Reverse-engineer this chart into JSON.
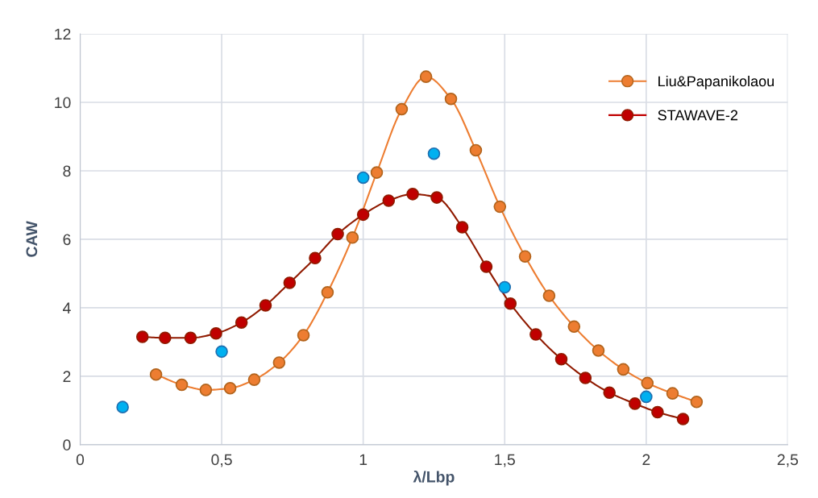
{
  "chart_data": {
    "type": "line",
    "xlabel": "λ/Lbp",
    "ylabel": "CAW",
    "xlim": [
      0,
      2.5
    ],
    "ylim": [
      0,
      12
    ],
    "xticks": [
      0,
      {
        "value": 0.5,
        "label": "0,5"
      },
      1,
      {
        "value": 1.5,
        "label": "1,5"
      },
      2,
      {
        "value": 2.5,
        "label": "2,5"
      }
    ],
    "yticks": [
      0,
      2,
      4,
      6,
      8,
      10,
      12
    ],
    "grid": true,
    "legend": "top right",
    "marker": "circle",
    "line_style": "solid",
    "series": [
      {
        "type": "scatter",
        "color": "#00b0f0",
        "x": [
          0.15,
          0.5,
          1.0,
          1.25,
          1.5,
          2.0
        ],
        "values": [
          1.1,
          2.72,
          7.8,
          8.5,
          4.6,
          1.4
        ]
      },
      {
        "name": "Liu&Papanikolaou",
        "color": "#ed7d31",
        "x": [
          0.268,
          0.359,
          0.444,
          0.53,
          0.615,
          0.703,
          0.789,
          0.874,
          0.962,
          1.048,
          1.136,
          1.222,
          1.31,
          1.398,
          1.483,
          1.572,
          1.657,
          1.745,
          1.831,
          1.919,
          2.004,
          2.093,
          2.178
        ],
        "values": [
          2.05,
          1.75,
          1.6,
          1.65,
          1.9,
          2.4,
          3.2,
          4.45,
          6.05,
          7.95,
          9.8,
          10.75,
          10.1,
          8.6,
          6.95,
          5.5,
          4.35,
          3.45,
          2.75,
          2.2,
          1.8,
          1.5,
          1.25
        ]
      },
      {
        "name": "STAWAVE-2",
        "color": "#c00000",
        "x": [
          0.22,
          0.3,
          0.39,
          0.48,
          0.57,
          0.655,
          0.74,
          0.83,
          0.91,
          1.0,
          1.09,
          1.175,
          1.26,
          1.35,
          1.435,
          1.52,
          1.61,
          1.7,
          1.785,
          1.87,
          1.96,
          2.04,
          2.13
        ],
        "values": [
          3.15,
          3.12,
          3.12,
          3.25,
          3.57,
          4.07,
          4.73,
          5.45,
          6.15,
          6.72,
          7.13,
          7.32,
          7.22,
          6.35,
          5.2,
          4.12,
          3.22,
          2.5,
          1.95,
          1.52,
          1.2,
          0.95,
          0.75
        ]
      }
    ]
  }
}
